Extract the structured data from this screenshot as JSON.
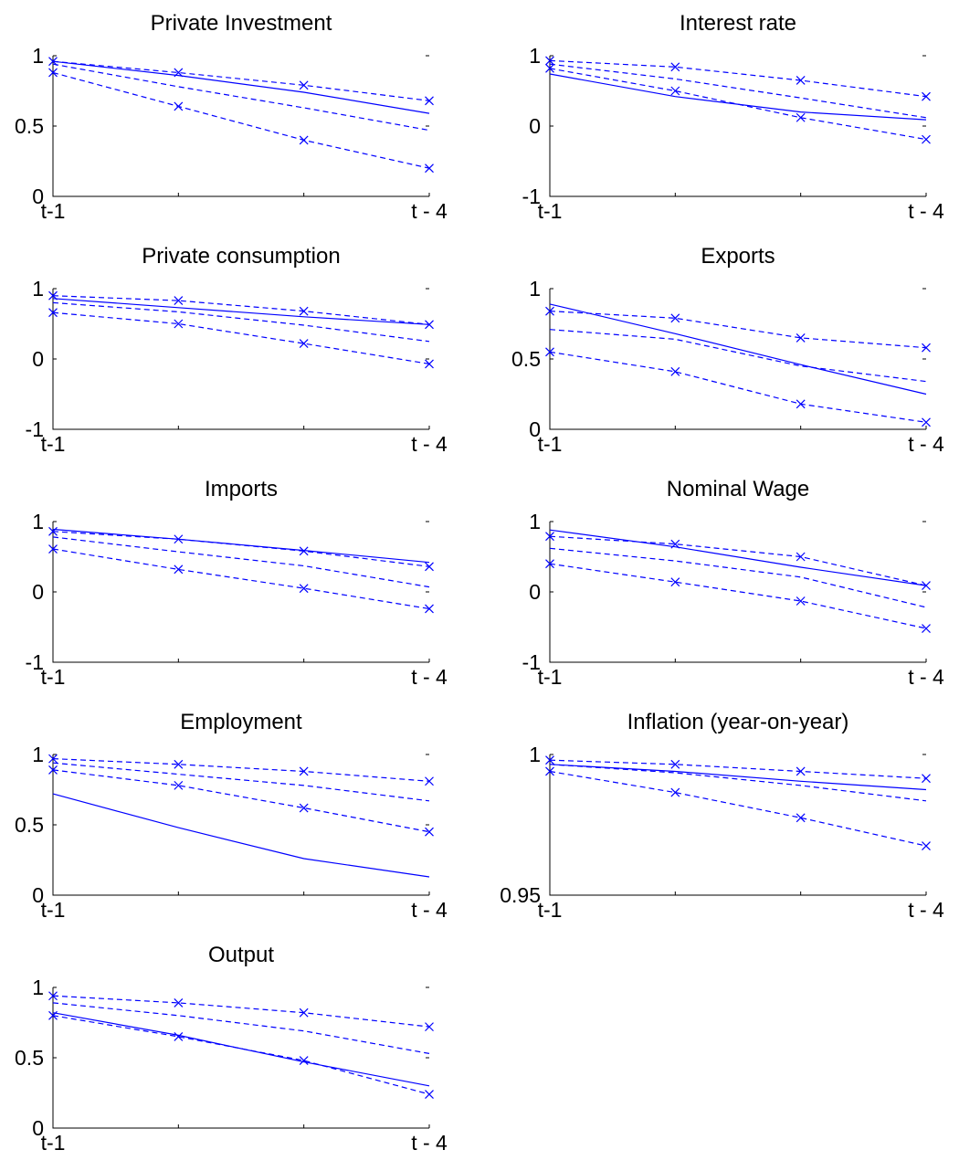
{
  "chart_data": [
    {
      "type": "line",
      "title": "Private Investment",
      "ylim": [
        0,
        1
      ],
      "ytick_labels": [
        "0",
        "0.5",
        "1"
      ],
      "xtick_labels": [
        "t-1",
        "t - 4"
      ],
      "x": [
        1,
        2,
        3,
        4
      ],
      "series": [
        {
          "style": "solid",
          "values": [
            0.96,
            0.86,
            0.74,
            0.59
          ]
        },
        {
          "style": "dashed-x",
          "values": [
            0.96,
            0.88,
            0.79,
            0.68
          ]
        },
        {
          "style": "dashed",
          "values": [
            0.94,
            0.78,
            0.63,
            0.47
          ]
        },
        {
          "style": "dashed-x",
          "values": [
            0.88,
            0.64,
            0.4,
            0.2
          ]
        }
      ]
    },
    {
      "type": "line",
      "title": "Interest rate",
      "ylim": [
        -1,
        1
      ],
      "ytick_labels": [
        "-1",
        "0",
        "1"
      ],
      "xtick_labels": [
        "t-1",
        "t - 4"
      ],
      "x": [
        1,
        2,
        3,
        4
      ],
      "series": [
        {
          "style": "solid",
          "values": [
            0.74,
            0.42,
            0.2,
            0.09
          ]
        },
        {
          "style": "dashed-x",
          "values": [
            0.93,
            0.84,
            0.65,
            0.42
          ]
        },
        {
          "style": "dashed",
          "values": [
            0.88,
            0.67,
            0.4,
            0.12
          ]
        },
        {
          "style": "dashed-x",
          "values": [
            0.82,
            0.5,
            0.12,
            -0.19
          ]
        }
      ]
    },
    {
      "type": "line",
      "title": "Private consumption",
      "ylim": [
        -1,
        1
      ],
      "ytick_labels": [
        "-1",
        "0",
        "1"
      ],
      "xtick_labels": [
        "t-1",
        "t - 4"
      ],
      "x": [
        1,
        2,
        3,
        4
      ],
      "series": [
        {
          "style": "solid",
          "values": [
            0.86,
            0.73,
            0.6,
            0.49
          ]
        },
        {
          "style": "dashed-x",
          "values": [
            0.9,
            0.83,
            0.68,
            0.49
          ]
        },
        {
          "style": "dashed",
          "values": [
            0.8,
            0.67,
            0.48,
            0.25
          ]
        },
        {
          "style": "dashed-x",
          "values": [
            0.66,
            0.5,
            0.22,
            -0.07
          ]
        }
      ]
    },
    {
      "type": "line",
      "title": "Exports",
      "ylim": [
        0,
        1
      ],
      "ytick_labels": [
        "0",
        "0.5",
        "1"
      ],
      "xtick_labels": [
        "t-1",
        "t - 4"
      ],
      "x": [
        1,
        2,
        3,
        4
      ],
      "series": [
        {
          "style": "solid",
          "values": [
            0.89,
            0.68,
            0.46,
            0.25
          ]
        },
        {
          "style": "dashed-x",
          "values": [
            0.84,
            0.79,
            0.65,
            0.58
          ]
        },
        {
          "style": "dashed",
          "values": [
            0.71,
            0.64,
            0.45,
            0.34
          ]
        },
        {
          "style": "dashed-x",
          "values": [
            0.55,
            0.41,
            0.18,
            0.05
          ]
        }
      ]
    },
    {
      "type": "line",
      "title": "Imports",
      "ylim": [
        -1,
        1
      ],
      "ytick_labels": [
        "-1",
        "0",
        "1"
      ],
      "xtick_labels": [
        "t-1",
        "t - 4"
      ],
      "x": [
        1,
        2,
        3,
        4
      ],
      "series": [
        {
          "style": "solid",
          "values": [
            0.89,
            0.75,
            0.59,
            0.42
          ]
        },
        {
          "style": "dashed-x",
          "values": [
            0.86,
            0.75,
            0.58,
            0.36
          ]
        },
        {
          "style": "dashed",
          "values": [
            0.78,
            0.57,
            0.37,
            0.07
          ]
        },
        {
          "style": "dashed-x",
          "values": [
            0.61,
            0.32,
            0.05,
            -0.24
          ]
        }
      ]
    },
    {
      "type": "line",
      "title": "Nominal Wage",
      "ylim": [
        -1,
        1
      ],
      "ytick_labels": [
        "-1",
        "0",
        "1"
      ],
      "xtick_labels": [
        "t-1",
        "t - 4"
      ],
      "x": [
        1,
        2,
        3,
        4
      ],
      "series": [
        {
          "style": "solid",
          "values": [
            0.88,
            0.64,
            0.35,
            0.09
          ]
        },
        {
          "style": "dashed-x",
          "values": [
            0.79,
            0.68,
            0.5,
            0.09
          ]
        },
        {
          "style": "dashed",
          "values": [
            0.62,
            0.44,
            0.21,
            -0.22
          ]
        },
        {
          "style": "dashed-x",
          "values": [
            0.4,
            0.14,
            -0.13,
            -0.52
          ]
        }
      ]
    },
    {
      "type": "line",
      "title": "Employment",
      "ylim": [
        0,
        1
      ],
      "ytick_labels": [
        "0",
        "0.5",
        "1"
      ],
      "xtick_labels": [
        "t-1",
        "t - 4"
      ],
      "x": [
        1,
        2,
        3,
        4
      ],
      "series": [
        {
          "style": "solid",
          "values": [
            0.72,
            0.48,
            0.26,
            0.13
          ]
        },
        {
          "style": "dashed-x",
          "values": [
            0.97,
            0.93,
            0.88,
            0.81
          ]
        },
        {
          "style": "dashed",
          "values": [
            0.94,
            0.86,
            0.78,
            0.67
          ]
        },
        {
          "style": "dashed-x",
          "values": [
            0.89,
            0.78,
            0.62,
            0.45
          ]
        }
      ]
    },
    {
      "type": "line",
      "title": "Inflation (year-on-year)",
      "ylim": [
        0.95,
        1
      ],
      "ytick_labels": [
        "0.95",
        "1"
      ],
      "xtick_labels": [
        "t-1",
        "t - 4"
      ],
      "x": [
        1,
        2,
        3,
        4
      ],
      "series": [
        {
          "style": "solid",
          "values": [
            0.9965,
            0.994,
            0.9905,
            0.9875
          ]
        },
        {
          "style": "dashed-x",
          "values": [
            0.998,
            0.9965,
            0.994,
            0.9915
          ]
        },
        {
          "style": "dashed",
          "values": [
            0.9965,
            0.9935,
            0.989,
            0.9835
          ]
        },
        {
          "style": "dashed-x",
          "values": [
            0.994,
            0.9865,
            0.9775,
            0.9675
          ]
        }
      ]
    },
    {
      "type": "line",
      "title": "Output",
      "ylim": [
        0,
        1
      ],
      "ytick_labels": [
        "0",
        "0.5",
        "1"
      ],
      "xtick_labels": [
        "t-1",
        "t - 4"
      ],
      "x": [
        1,
        2,
        3,
        4
      ],
      "series": [
        {
          "style": "solid",
          "values": [
            0.82,
            0.66,
            0.47,
            0.3
          ]
        },
        {
          "style": "dashed-x",
          "values": [
            0.94,
            0.89,
            0.82,
            0.72
          ]
        },
        {
          "style": "dashed",
          "values": [
            0.89,
            0.8,
            0.69,
            0.53
          ]
        },
        {
          "style": "dashed-x",
          "values": [
            0.8,
            0.65,
            0.48,
            0.24
          ]
        }
      ]
    }
  ],
  "colors": {
    "line": "#0000ff",
    "axis": "#000000"
  }
}
